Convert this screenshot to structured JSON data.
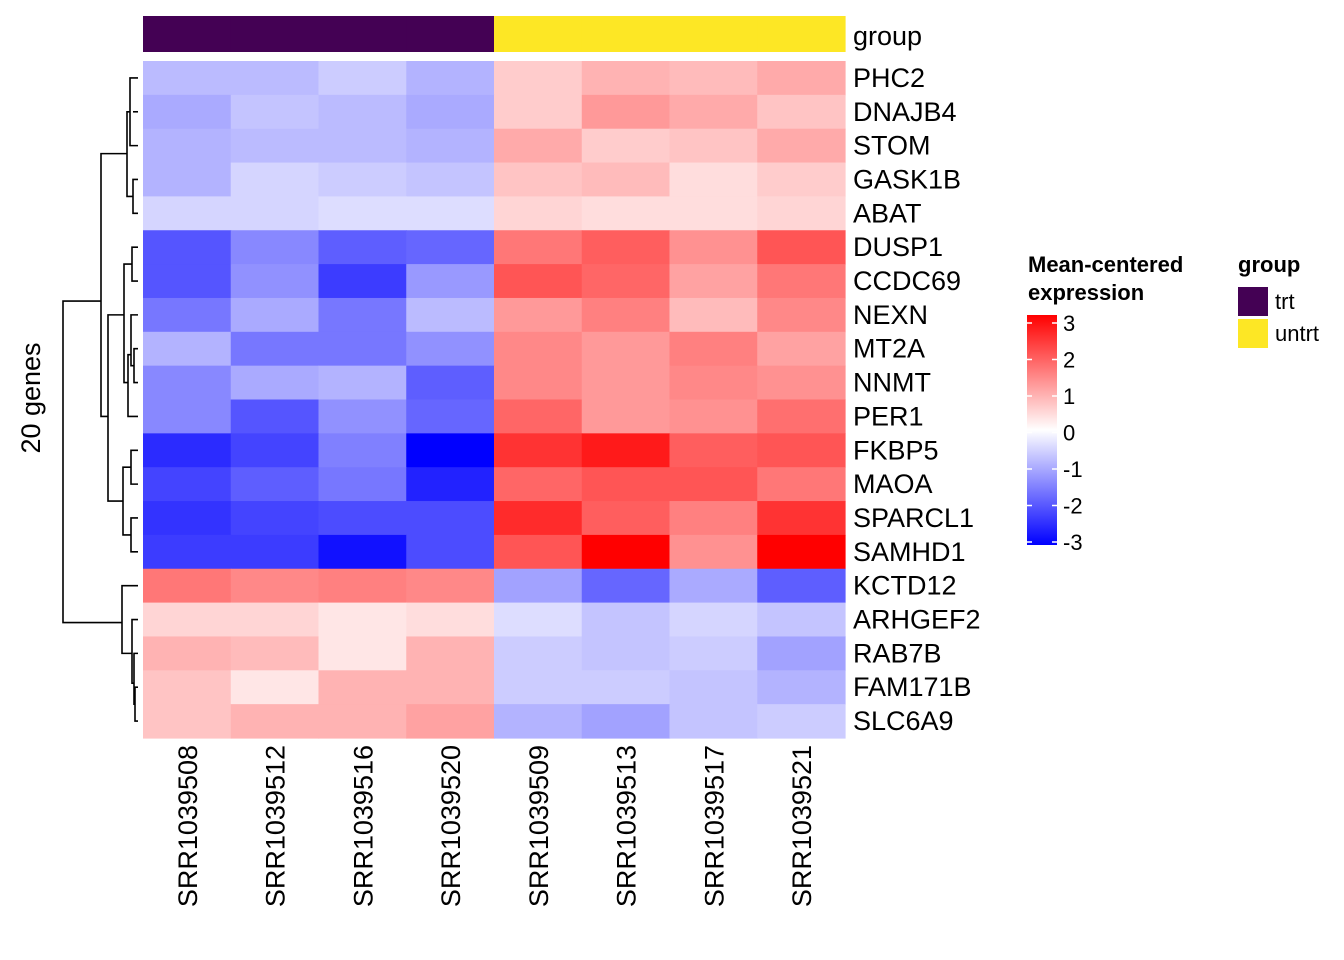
{
  "chart_data": {
    "type": "heatmap",
    "title": "",
    "row_axis_label": "20 genes",
    "annotation": {
      "label": "group",
      "values": [
        "trt",
        "trt",
        "trt",
        "trt",
        "untrt",
        "untrt",
        "untrt",
        "untrt"
      ],
      "colors": {
        "trt": "#440154",
        "untrt": "#FDE725"
      }
    },
    "columns": [
      "SRR1039508",
      "SRR1039512",
      "SRR1039516",
      "SRR1039520",
      "SRR1039509",
      "SRR1039513",
      "SRR1039517",
      "SRR1039521"
    ],
    "rows": [
      "PHC2",
      "DNAJB4",
      "STOM",
      "GASK1B",
      "ABAT",
      "DUSP1",
      "CCDC69",
      "NEXN",
      "MT2A",
      "NNMT",
      "PER1",
      "FKBP5",
      "MAOA",
      "SPARCL1",
      "SAMHD1",
      "KCTD12",
      "ARHGEF2",
      "RAB7B",
      "FAM171B",
      "SLC6A9"
    ],
    "values": [
      [
        -0.8,
        -0.8,
        -0.6,
        -0.9,
        0.6,
        0.9,
        0.8,
        1.0
      ],
      [
        -1.0,
        -0.7,
        -0.8,
        -1.0,
        0.6,
        1.2,
        1.0,
        0.7
      ],
      [
        -0.9,
        -0.8,
        -0.8,
        -0.9,
        1.0,
        0.6,
        0.7,
        1.0
      ],
      [
        -0.9,
        -0.5,
        -0.6,
        -0.7,
        0.7,
        0.8,
        0.4,
        0.6
      ],
      [
        -0.5,
        -0.5,
        -0.4,
        -0.4,
        0.5,
        0.4,
        0.4,
        0.5
      ],
      [
        -2.0,
        -1.4,
        -1.9,
        -1.8,
        1.6,
        1.9,
        1.3,
        2.0
      ],
      [
        -2.0,
        -1.3,
        -2.3,
        -1.2,
        2.0,
        1.8,
        1.1,
        1.6
      ],
      [
        -1.6,
        -1.0,
        -1.6,
        -0.8,
        1.2,
        1.5,
        0.8,
        1.4
      ],
      [
        -0.9,
        -1.6,
        -1.6,
        -1.3,
        1.4,
        1.2,
        1.5,
        1.1
      ],
      [
        -1.4,
        -1.0,
        -0.9,
        -1.9,
        1.4,
        1.2,
        1.4,
        1.3
      ],
      [
        -1.4,
        -2.0,
        -1.3,
        -1.8,
        1.8,
        1.2,
        1.3,
        1.7
      ],
      [
        -2.5,
        -2.2,
        -1.5,
        -3.0,
        2.4,
        2.7,
        1.9,
        2.0
      ],
      [
        -2.2,
        -1.9,
        -1.6,
        -2.6,
        1.8,
        2.0,
        2.0,
        1.6
      ],
      [
        -2.4,
        -2.2,
        -2.1,
        -2.1,
        2.5,
        1.9,
        1.5,
        2.4
      ],
      [
        -2.3,
        -2.3,
        -2.8,
        -2.1,
        2.0,
        3.0,
        1.3,
        3.0
      ],
      [
        1.6,
        1.4,
        1.5,
        1.4,
        -1.1,
        -1.8,
        -1.0,
        -1.9
      ],
      [
        0.5,
        0.5,
        0.3,
        0.4,
        -0.4,
        -0.7,
        -0.5,
        -0.7
      ],
      [
        0.9,
        0.8,
        0.3,
        0.9,
        -0.6,
        -0.7,
        -0.6,
        -1.1
      ],
      [
        0.7,
        0.3,
        0.9,
        0.9,
        -0.6,
        -0.6,
        -0.7,
        -0.9
      ],
      [
        0.7,
        0.9,
        0.9,
        1.1,
        -0.9,
        -1.1,
        -0.7,
        -0.6
      ]
    ],
    "colorbar": {
      "title_line1": "Mean-centered",
      "title_line2": "expression",
      "range": [
        -3,
        3
      ],
      "ticks": [
        "3",
        "2",
        "1",
        "0",
        "-1",
        "-2",
        "-3"
      ],
      "low_color": "#0000FF",
      "mid_color": "#FFFFFF",
      "high_color": "#FF0000"
    },
    "legend": {
      "title": "group",
      "items": [
        {
          "label": "trt",
          "color": "#440154"
        },
        {
          "label": "untrt",
          "color": "#FDE725"
        }
      ]
    }
  }
}
